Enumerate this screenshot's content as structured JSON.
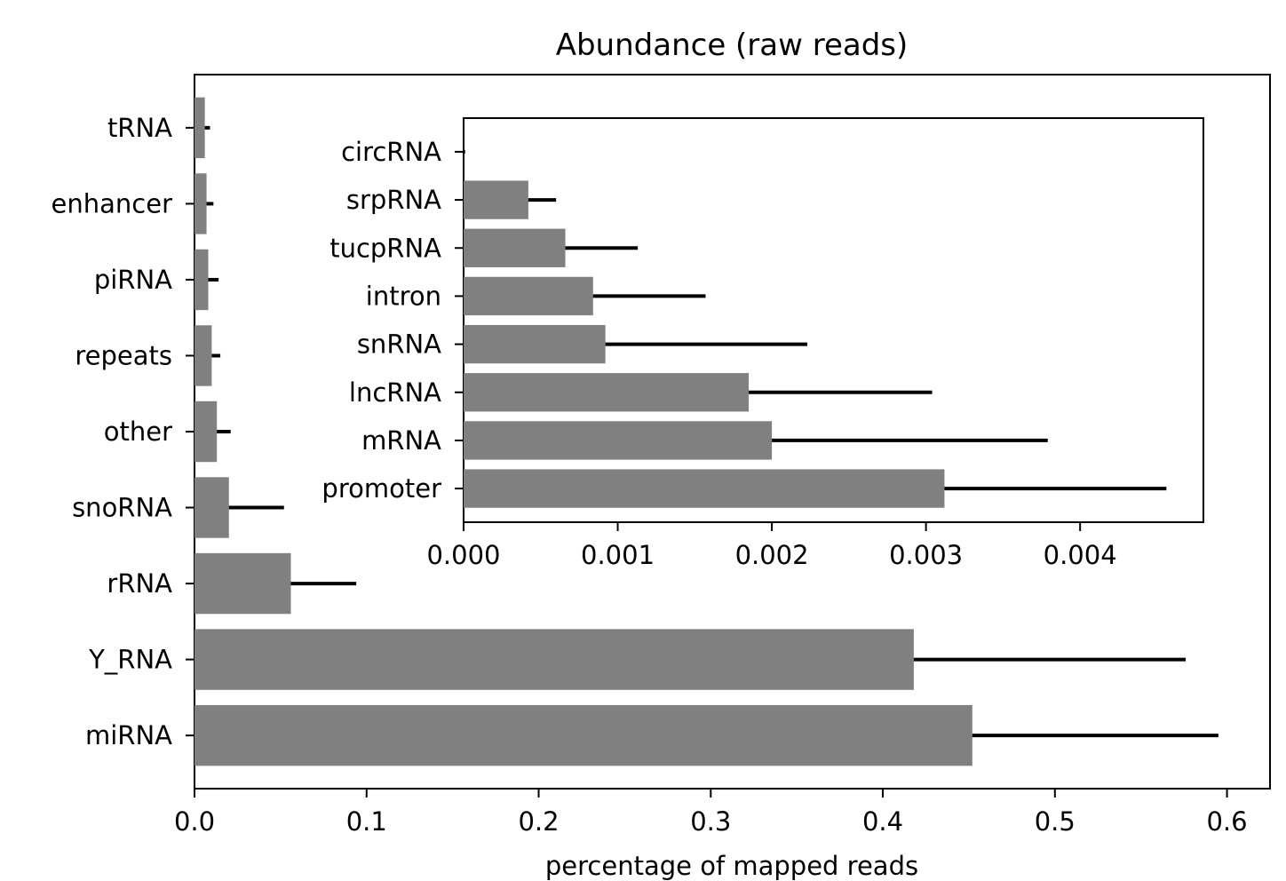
{
  "chart_data": [
    {
      "type": "bar",
      "orientation": "horizontal",
      "title": "Abundance (raw reads)",
      "xlabel": "percentage of mapped reads",
      "ylabel": "",
      "xlim": [
        0,
        0.625
      ],
      "xticks": [
        0.0,
        0.1,
        0.2,
        0.3,
        0.4,
        0.5,
        0.6
      ],
      "xtick_labels": [
        "0.0",
        "0.1",
        "0.2",
        "0.3",
        "0.4",
        "0.5",
        "0.6"
      ],
      "categories": [
        "miRNA",
        "Y_RNA",
        "rRNA",
        "snoRNA",
        "other",
        "repeats",
        "piRNA",
        "enhancer",
        "tRNA"
      ],
      "values": [
        0.452,
        0.418,
        0.056,
        0.02,
        0.013,
        0.01,
        0.008,
        0.007,
        0.006
      ],
      "errors": [
        0.143,
        0.158,
        0.038,
        0.032,
        0.008,
        0.005,
        0.006,
        0.004,
        0.003
      ],
      "bar_color": "#808080",
      "error_color": "#000000",
      "grid": false
    },
    {
      "type": "bar",
      "orientation": "horizontal",
      "title": "",
      "xlabel": "",
      "ylabel": "",
      "xlim": [
        0,
        0.0048
      ],
      "xticks": [
        0.0,
        0.001,
        0.002,
        0.003,
        0.004
      ],
      "xtick_labels": [
        "0.000",
        "0.001",
        "0.002",
        "0.003",
        "0.004"
      ],
      "categories": [
        "promoter",
        "mRNA",
        "lncRNA",
        "snRNA",
        "intron",
        "tucpRNA",
        "srpRNA",
        "circRNA"
      ],
      "values": [
        0.00312,
        0.002,
        0.00185,
        0.00092,
        0.00084,
        0.00066,
        0.00042,
        0.0
      ],
      "errors": [
        0.00144,
        0.00179,
        0.00119,
        0.00131,
        0.00073,
        0.00047,
        0.00018,
        1e-05
      ],
      "bar_color": "#808080",
      "error_color": "#000000",
      "grid": false
    }
  ]
}
